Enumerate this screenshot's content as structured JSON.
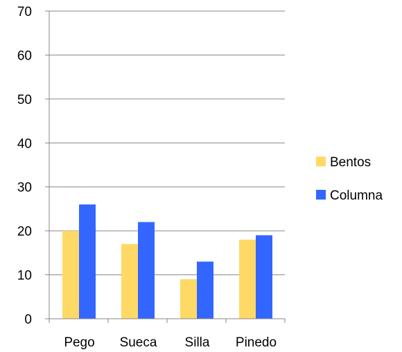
{
  "chart_data": {
    "type": "bar",
    "categories": [
      "Pego",
      "Sueca",
      "Silla",
      "Pinedo"
    ],
    "series": [
      {
        "name": "Bentos",
        "values": [
          20,
          17,
          9,
          18
        ],
        "color": "#FFD966"
      },
      {
        "name": "Columna",
        "values": [
          26,
          22,
          13,
          19
        ],
        "color": "#3366FF"
      }
    ],
    "ylim": [
      0,
      70
    ],
    "yticks": [
      0,
      10,
      20,
      30,
      40,
      50,
      60,
      70
    ],
    "grid": true,
    "legend": "right",
    "axis_color": "#868686",
    "grid_color": "#868686"
  }
}
